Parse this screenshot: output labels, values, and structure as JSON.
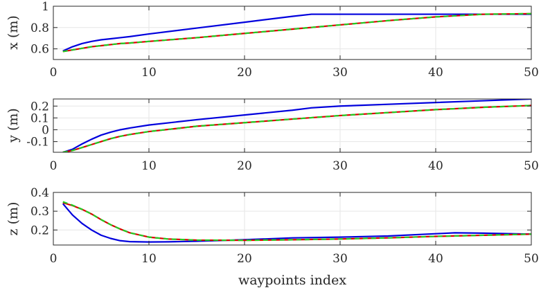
{
  "chart_data": [
    {
      "type": "line",
      "ylabel": "x (m)",
      "xlabel": "",
      "xlim": [
        0,
        50
      ],
      "ylim": [
        0.5,
        1.0
      ],
      "xticks": [
        0,
        10,
        20,
        30,
        40,
        50
      ],
      "xtick_labels": [
        "0",
        "10",
        "20",
        "30",
        "40",
        "50"
      ],
      "yticks": [
        0.6,
        0.8,
        1.0
      ],
      "ytick_labels": [
        "0.6",
        "0.8",
        "1"
      ],
      "grid": true,
      "series": [
        {
          "color": "#0000dd",
          "style": "solid",
          "x": [
            1,
            2,
            3,
            4,
            5,
            6,
            7,
            8,
            10,
            15,
            20,
            25,
            27,
            30,
            35,
            40,
            45,
            50
          ],
          "y": [
            0.58,
            0.62,
            0.65,
            0.67,
            0.685,
            0.695,
            0.705,
            0.715,
            0.74,
            0.795,
            0.85,
            0.905,
            0.925,
            0.925,
            0.925,
            0.925,
            0.925,
            0.925
          ]
        },
        {
          "color": "#dd0000",
          "style": "solid",
          "x": [
            1,
            2,
            3,
            4,
            5,
            6,
            7,
            8,
            10,
            15,
            20,
            25,
            30,
            35,
            40,
            45,
            50
          ],
          "y": [
            0.575,
            0.59,
            0.605,
            0.62,
            0.63,
            0.64,
            0.65,
            0.655,
            0.67,
            0.705,
            0.745,
            0.785,
            0.825,
            0.865,
            0.9,
            0.925,
            0.93
          ]
        },
        {
          "color": "#22cc22",
          "style": "dashed",
          "x": [
            1,
            2,
            3,
            4,
            5,
            6,
            7,
            8,
            10,
            15,
            20,
            25,
            30,
            35,
            40,
            45,
            50
          ],
          "y": [
            0.575,
            0.59,
            0.605,
            0.62,
            0.63,
            0.64,
            0.65,
            0.655,
            0.67,
            0.705,
            0.745,
            0.785,
            0.825,
            0.865,
            0.9,
            0.925,
            0.93
          ]
        }
      ]
    },
    {
      "type": "line",
      "ylabel": "y (m)",
      "xlabel": "",
      "xlim": [
        0,
        50
      ],
      "ylim": [
        -0.19,
        0.26
      ],
      "xticks": [
        0,
        10,
        20,
        30,
        40,
        50
      ],
      "xtick_labels": [
        "0",
        "10",
        "20",
        "30",
        "40",
        "50"
      ],
      "yticks": [
        -0.1,
        0,
        0.1,
        0.2
      ],
      "ytick_labels": [
        "-0.1",
        "0",
        "0.1",
        "0.2"
      ],
      "grid": true,
      "series": [
        {
          "color": "#0000dd",
          "style": "solid",
          "x": [
            1,
            2,
            3,
            4,
            5,
            6,
            7,
            8,
            10,
            15,
            20,
            25,
            27,
            30,
            35,
            40,
            45,
            50
          ],
          "y": [
            -0.19,
            -0.165,
            -0.12,
            -0.08,
            -0.045,
            -0.02,
            0.0,
            0.015,
            0.04,
            0.085,
            0.125,
            0.165,
            0.185,
            0.2,
            0.215,
            0.23,
            0.245,
            0.26
          ]
        },
        {
          "color": "#dd0000",
          "style": "solid",
          "x": [
            1,
            2,
            3,
            4,
            5,
            6,
            7,
            8,
            10,
            15,
            20,
            25,
            30,
            35,
            40,
            45,
            50
          ],
          "y": [
            -0.19,
            -0.175,
            -0.15,
            -0.125,
            -0.1,
            -0.075,
            -0.055,
            -0.04,
            -0.015,
            0.03,
            0.06,
            0.09,
            0.12,
            0.145,
            0.17,
            0.19,
            0.205
          ]
        },
        {
          "color": "#22cc22",
          "style": "dashed",
          "x": [
            1,
            2,
            3,
            4,
            5,
            6,
            7,
            8,
            10,
            15,
            20,
            25,
            30,
            35,
            40,
            45,
            50
          ],
          "y": [
            -0.19,
            -0.175,
            -0.15,
            -0.125,
            -0.1,
            -0.075,
            -0.055,
            -0.04,
            -0.015,
            0.03,
            0.06,
            0.09,
            0.12,
            0.145,
            0.17,
            0.19,
            0.205
          ]
        }
      ]
    },
    {
      "type": "line",
      "ylabel": "z (m)",
      "xlabel": "waypoints index",
      "xlim": [
        0,
        50
      ],
      "ylim": [
        0.12,
        0.4
      ],
      "xticks": [
        0,
        10,
        20,
        30,
        40,
        50
      ],
      "xtick_labels": [
        "0",
        "10",
        "20",
        "30",
        "40",
        "50"
      ],
      "yticks": [
        0.2,
        0.3,
        0.4
      ],
      "ytick_labels": [
        "0.2",
        "0.3",
        "0.4"
      ],
      "grid": true,
      "series": [
        {
          "color": "#0000dd",
          "style": "solid",
          "x": [
            1,
            2,
            3,
            4,
            5,
            6,
            7,
            8,
            10,
            12,
            15,
            20,
            25,
            30,
            35,
            40,
            42,
            45,
            50
          ],
          "y": [
            0.34,
            0.28,
            0.235,
            0.2,
            0.172,
            0.155,
            0.143,
            0.138,
            0.136,
            0.137,
            0.14,
            0.148,
            0.158,
            0.162,
            0.168,
            0.18,
            0.185,
            0.183,
            0.178
          ]
        },
        {
          "color": "#dd0000",
          "style": "solid",
          "x": [
            1,
            2,
            3,
            4,
            5,
            6,
            7,
            8,
            10,
            12,
            15,
            20,
            25,
            30,
            35,
            40,
            45,
            50
          ],
          "y": [
            0.345,
            0.33,
            0.31,
            0.285,
            0.255,
            0.228,
            0.205,
            0.185,
            0.162,
            0.152,
            0.146,
            0.145,
            0.148,
            0.152,
            0.158,
            0.166,
            0.172,
            0.178
          ]
        },
        {
          "color": "#22cc22",
          "style": "dashed",
          "x": [
            1,
            2,
            3,
            4,
            5,
            6,
            7,
            8,
            10,
            12,
            15,
            20,
            25,
            30,
            35,
            40,
            45,
            50
          ],
          "y": [
            0.35,
            0.332,
            0.31,
            0.285,
            0.255,
            0.228,
            0.205,
            0.185,
            0.162,
            0.152,
            0.146,
            0.145,
            0.148,
            0.152,
            0.158,
            0.166,
            0.172,
            0.178
          ]
        }
      ]
    }
  ]
}
